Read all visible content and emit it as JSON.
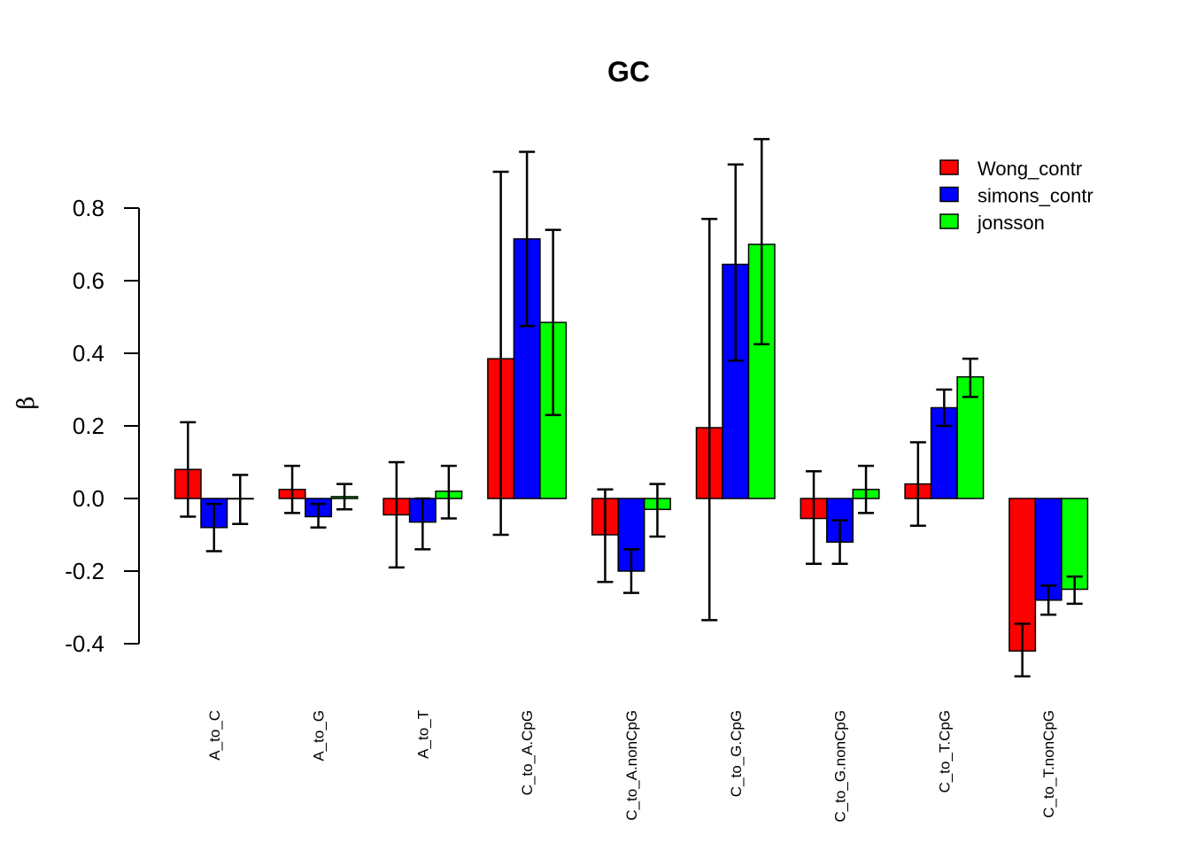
{
  "chart_data": {
    "type": "bar",
    "title": "GC",
    "xlabel": "",
    "ylabel": "β",
    "ylim": [
      -0.45,
      0.95
    ],
    "yticks": [
      -0.4,
      -0.2,
      0.0,
      0.2,
      0.4,
      0.6,
      0.8
    ],
    "ytick_labels": [
      "-0.4",
      "-0.2",
      "0.0",
      "0.2",
      "0.4",
      "0.6",
      "0.8"
    ],
    "categories": [
      "A_to_C",
      "A_to_G",
      "A_to_T",
      "C_to_A.CpG",
      "C_to_A.nonCpG",
      "C_to_G.CpG",
      "C_to_G.nonCpG",
      "C_to_T.CpG",
      "C_to_T.nonCpG"
    ],
    "legend_position": "top-right",
    "grid": false,
    "series": [
      {
        "name": "Wong_contr",
        "color": "#ff0000",
        "values": [
          0.08,
          0.025,
          -0.045,
          0.385,
          -0.1,
          0.195,
          -0.055,
          0.04,
          -0.42
        ],
        "lower": [
          -0.05,
          -0.04,
          -0.19,
          -0.1,
          -0.23,
          -0.335,
          -0.18,
          -0.075,
          -0.49
        ],
        "upper": [
          0.21,
          0.09,
          0.1,
          0.9,
          0.025,
          0.77,
          0.075,
          0.155,
          -0.345
        ]
      },
      {
        "name": "simons_contr",
        "color": "#0000ff",
        "values": [
          -0.08,
          -0.05,
          -0.065,
          0.715,
          -0.2,
          0.645,
          -0.12,
          0.25,
          -0.28
        ],
        "lower": [
          -0.145,
          -0.08,
          -0.14,
          0.475,
          -0.26,
          0.38,
          -0.18,
          0.2,
          -0.32
        ],
        "upper": [
          -0.015,
          -0.015,
          0.0,
          0.955,
          -0.14,
          0.92,
          -0.06,
          0.3,
          -0.24
        ]
      },
      {
        "name": "jonsson",
        "color": "#00ff00",
        "values": [
          0.0,
          0.005,
          0.02,
          0.485,
          -0.03,
          0.7,
          0.025,
          0.335,
          -0.25
        ],
        "lower": [
          -0.07,
          -0.03,
          -0.055,
          0.23,
          -0.105,
          0.425,
          -0.04,
          0.28,
          -0.29
        ],
        "upper": [
          0.065,
          0.04,
          0.09,
          0.74,
          0.04,
          0.99,
          0.09,
          0.385,
          -0.215
        ]
      }
    ]
  }
}
